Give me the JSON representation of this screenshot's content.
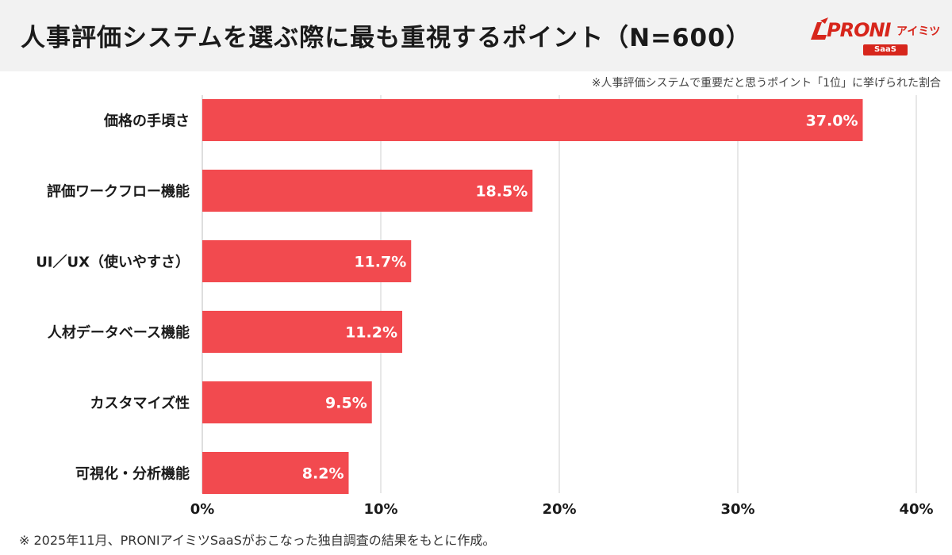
{
  "header": {
    "title": "人事評価システムを選ぶ際に最も重視するポイント（N=600）",
    "logo_text": "PRONI",
    "logo_sub": "アイミツ",
    "logo_badge": "SaaS"
  },
  "note": "※人事評価システムで重要だと思うポイント「1位」に挙げられた割合",
  "footnote": "※ 2025年11月、PRONIアイミツSaaSがおこなった独自調査の結果をもとに作成。",
  "colors": {
    "bar": "#f24a4f",
    "grid": "#cfcfcf",
    "title_bg": "#f2f2f2",
    "brand": "#d7261c"
  },
  "chart_data": {
    "type": "bar",
    "orientation": "horizontal",
    "categories": [
      "価格の手頃さ",
      "評価ワークフロー機能",
      "UI／UX（使いやすさ）",
      "人材データベース機能",
      "カスタマイズ性",
      "可視化・分析機能"
    ],
    "values": [
      37.0,
      18.5,
      11.7,
      11.2,
      9.5,
      8.2
    ],
    "value_labels": [
      "37.0%",
      "18.5%",
      "11.7%",
      "11.2%",
      "9.5%",
      "8.2%"
    ],
    "xlim": [
      0,
      40
    ],
    "xticks": [
      0,
      10,
      20,
      30,
      40
    ],
    "xtick_labels": [
      "0%",
      "10%",
      "20%",
      "30%",
      "40%"
    ],
    "grid": true,
    "legend": "none"
  }
}
